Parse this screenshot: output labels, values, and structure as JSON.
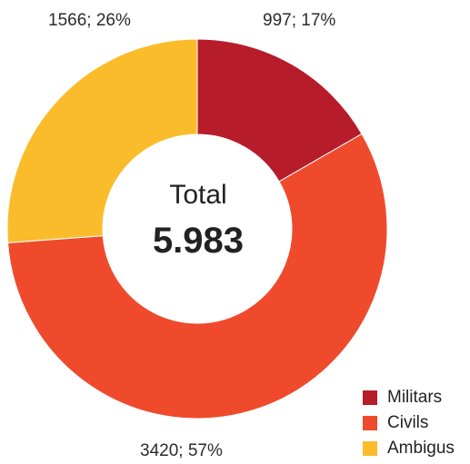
{
  "chart_data": {
    "type": "pie",
    "donut": true,
    "center": {
      "title": "Total",
      "value": "5.983"
    },
    "slices": [
      {
        "name": "Militars",
        "value": 997,
        "percent": 17,
        "label": "997; 17%",
        "color": "#b71c2a"
      },
      {
        "name": "Civils",
        "value": 3420,
        "percent": 57,
        "label": "3420; 57%",
        "color": "#ef4a2c"
      },
      {
        "name": "Ambigus",
        "value": 1566,
        "percent": 26,
        "label": "1566; 26%",
        "color": "#fbbc2b"
      }
    ],
    "legend": {
      "placement": "bottom-right"
    }
  }
}
